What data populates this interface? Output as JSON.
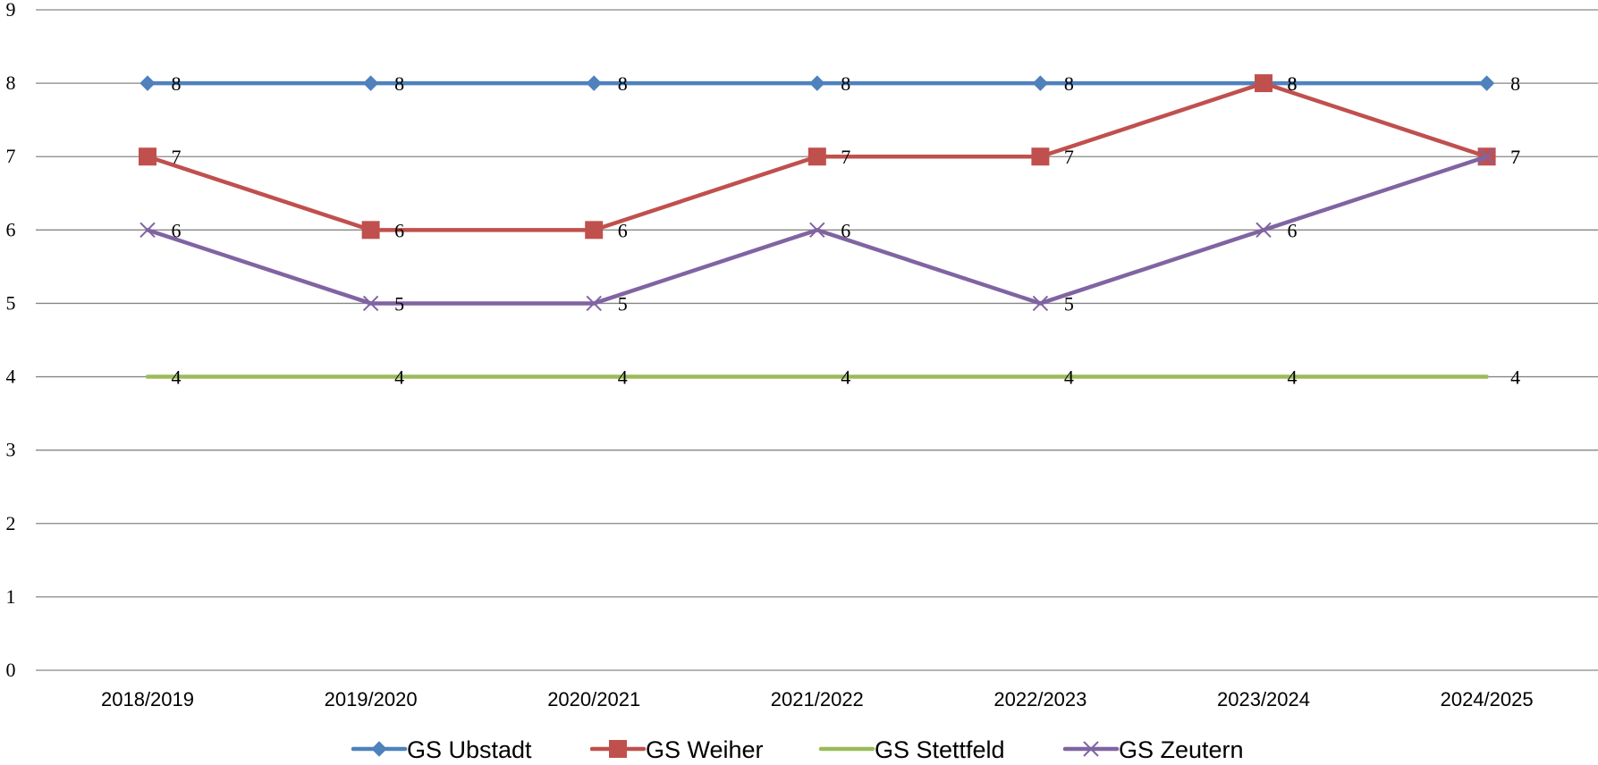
{
  "chart_data": {
    "type": "line",
    "title": "",
    "xlabel": "",
    "ylabel": "",
    "categories": [
      "2018/2019",
      "2019/2020",
      "2020/2021",
      "2021/2022",
      "2022/2023",
      "2023/2024",
      "2024/2025"
    ],
    "ylim": [
      0,
      9
    ],
    "yticks": [
      "0",
      "1",
      "2",
      "3",
      "4",
      "5",
      "6",
      "7",
      "8",
      "9"
    ],
    "grid": "horizontal",
    "legend_position": "bottom",
    "data_labels": true,
    "series": [
      {
        "name": "GS Ubstadt",
        "values": [
          8,
          8,
          8,
          8,
          8,
          8,
          8
        ],
        "color": "#4F81BD",
        "marker": "diamond"
      },
      {
        "name": "GS Weiher",
        "values": [
          7,
          6,
          6,
          7,
          7,
          8,
          7
        ],
        "color": "#C0504D",
        "marker": "square"
      },
      {
        "name": "GS Stettfeld",
        "values": [
          4,
          4,
          4,
          4,
          4,
          4,
          4
        ],
        "color": "#9BBB59",
        "marker": "none"
      },
      {
        "name": "GS Zeutern",
        "values": [
          6,
          5,
          5,
          6,
          5,
          6,
          7
        ],
        "color": "#8064A2",
        "marker": "x"
      }
    ]
  }
}
